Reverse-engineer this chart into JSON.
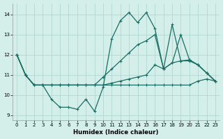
{
  "xlabel": "Humidex (Indice chaleur)",
  "background_color": "#d4eeea",
  "grid_color": "#aad4ce",
  "line_color": "#1a6e64",
  "xlim": [
    -0.5,
    23.5
  ],
  "ylim": [
    8.75,
    14.55
  ],
  "xticks": [
    0,
    1,
    2,
    3,
    4,
    5,
    6,
    7,
    8,
    9,
    10,
    11,
    12,
    13,
    14,
    15,
    16,
    17,
    18,
    19,
    20,
    21,
    22,
    23
  ],
  "yticks": [
    9,
    10,
    11,
    12,
    13,
    14
  ],
  "curve1": [
    12.0,
    11.0,
    10.5,
    10.5,
    9.8,
    9.4,
    9.4,
    9.3,
    9.8,
    9.2,
    10.4,
    12.8,
    13.7,
    14.1,
    13.6,
    14.1,
    13.3,
    11.3,
    13.5,
    11.7,
    11.7,
    11.5,
    11.1,
    10.7
  ],
  "curve2": [
    12.0,
    11.0,
    10.5,
    10.5,
    10.5,
    10.5,
    10.5,
    10.5,
    10.5,
    10.5,
    10.5,
    10.5,
    10.5,
    10.5,
    10.5,
    10.5,
    10.5,
    10.5,
    10.5,
    10.5,
    10.5,
    10.7,
    10.8,
    10.7
  ],
  "curve3": [
    12.0,
    11.0,
    10.5,
    10.5,
    10.5,
    10.5,
    10.5,
    10.5,
    10.5,
    10.5,
    10.9,
    11.3,
    11.7,
    12.1,
    12.5,
    12.7,
    13.0,
    11.3,
    11.6,
    13.0,
    11.75,
    11.5,
    11.1,
    10.7
  ],
  "curve4": [
    12.0,
    11.0,
    10.5,
    10.5,
    10.5,
    10.5,
    10.5,
    10.5,
    10.5,
    10.5,
    10.5,
    10.6,
    10.7,
    10.8,
    10.9,
    11.0,
    11.5,
    11.3,
    11.6,
    11.7,
    11.75,
    11.5,
    11.1,
    10.7
  ]
}
